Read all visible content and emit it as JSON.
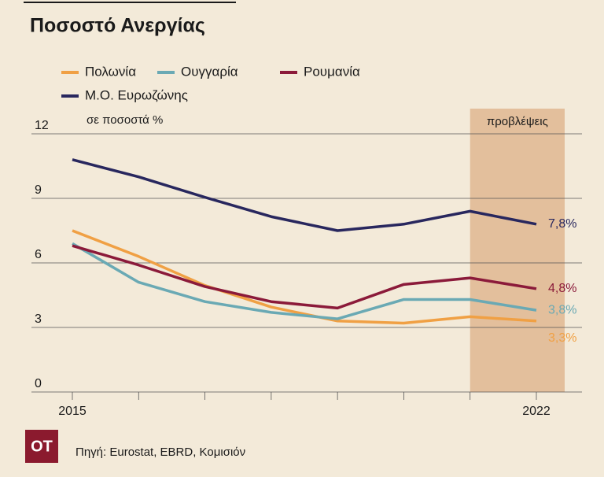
{
  "chart_data": {
    "type": "line",
    "title": "Ποσοστό Ανεργίας",
    "y_label": "σε ποσοστά %",
    "forecast_label": "προβλέψεις",
    "source": "Πηγή: Eurostat, EBRD, Κομισιόν",
    "logo": "OT",
    "categories": [
      "2015",
      null,
      null,
      null,
      null,
      null,
      null,
      "2022"
    ],
    "ylim": [
      0,
      12
    ],
    "yticks": [
      0,
      3,
      6,
      9,
      12
    ],
    "grid": true,
    "series": [
      {
        "name": "Πολωνία",
        "color": "#f0a044",
        "values": [
          7.5,
          6.3,
          4.95,
          3.95,
          3.3,
          3.2,
          3.5,
          3.3
        ],
        "value_labels": [
          null,
          null,
          null,
          null,
          null,
          null,
          null,
          "3,3%"
        ]
      },
      {
        "name": "Ουγγαρία",
        "color": "#6aa9b4",
        "values": [
          6.9,
          5.1,
          4.2,
          3.7,
          3.4,
          4.3,
          4.3,
          3.8
        ],
        "value_labels": [
          null,
          null,
          null,
          null,
          null,
          null,
          null,
          "3,8%"
        ]
      },
      {
        "name": "Ρουμανία",
        "color": "#8b1a3a",
        "values": [
          6.8,
          5.9,
          4.9,
          4.2,
          3.9,
          5.0,
          5.3,
          4.8
        ],
        "value_labels": [
          null,
          null,
          null,
          null,
          null,
          null,
          null,
          "4,8%"
        ]
      },
      {
        "name": "Μ.Ο. Ευρωζώνης",
        "color": "#28275e",
        "values": [
          10.8,
          10.0,
          9.05,
          8.15,
          7.5,
          7.8,
          8.4,
          7.8
        ],
        "value_labels": [
          null,
          null,
          null,
          null,
          null,
          null,
          null,
          "7,8%"
        ]
      }
    ]
  }
}
